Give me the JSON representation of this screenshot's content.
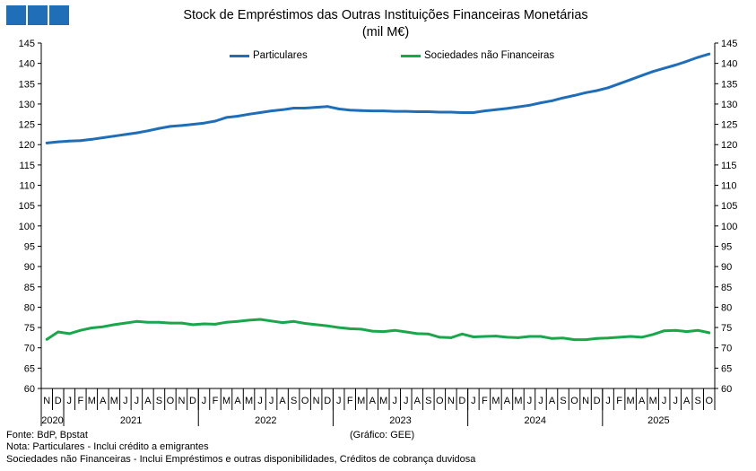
{
  "logo_colors": [
    "#1f6eb7",
    "#1f6eb7",
    "#1f6eb7"
  ],
  "title_line1": "Stock de Empréstimos  das Outras Instituições  Financeiras Monetárias",
  "title_line2": "(mil M€)",
  "source": "Fonte: BdP, Bpstat",
  "note1": "Nota: Particulares - Inclui crédito a emigrantes",
  "note2": "Sociedades não Financeiras - Inclui Empréstimos  e outras disponibilidades,  Créditos de cobrança duvidosa",
  "credit": "(Gráfico: GEE)",
  "chart_data": {
    "type": "line",
    "title": "Stock de Empréstimos  das Outras Instituições  Financeiras Monetárias",
    "subtitle": "(mil M€)",
    "x": [
      "2020-11",
      "2020-12",
      "2021-01",
      "2021-02",
      "2021-03",
      "2021-04",
      "2021-05",
      "2021-06",
      "2021-07",
      "2021-08",
      "2021-09",
      "2021-10",
      "2021-11",
      "2021-12",
      "2022-01",
      "2022-02",
      "2022-03",
      "2022-04",
      "2022-05",
      "2022-06",
      "2022-07",
      "2022-08",
      "2022-09",
      "2022-10",
      "2022-11",
      "2022-12",
      "2023-01",
      "2023-02",
      "2023-03",
      "2023-04",
      "2023-05",
      "2023-06",
      "2023-07",
      "2023-08",
      "2023-09",
      "2023-10",
      "2023-11",
      "2023-12",
      "2024-01",
      "2024-02",
      "2024-03",
      "2024-04",
      "2024-05",
      "2024-06",
      "2024-07",
      "2024-08",
      "2024-09",
      "2024-10",
      "2024-11",
      "2024-12",
      "2025-01",
      "2025-02",
      "2025-03",
      "2025-04",
      "2025-05",
      "2025-06",
      "2025-07",
      "2025-08",
      "2025-09",
      "2025-10"
    ],
    "month_labels": [
      "N",
      "D",
      "J",
      "F",
      "M",
      "A",
      "M",
      "J",
      "J",
      "A",
      "S",
      "O",
      "N",
      "D",
      "J",
      "F",
      "M",
      "A",
      "M",
      "J",
      "J",
      "A",
      "S",
      "O",
      "N",
      "D",
      "J",
      "F",
      "M",
      "A",
      "M",
      "J",
      "J",
      "A",
      "S",
      "O",
      "N",
      "D",
      "J",
      "F",
      "M",
      "A",
      "M",
      "J",
      "J",
      "A",
      "S",
      "O",
      "N",
      "D",
      "J",
      "F",
      "M",
      "A",
      "M",
      "J",
      "J",
      "A",
      "S",
      "O"
    ],
    "years": [
      {
        "label": "2020",
        "start": 0,
        "end": 1
      },
      {
        "label": "2021",
        "start": 2,
        "end": 13
      },
      {
        "label": "2022",
        "start": 14,
        "end": 25
      },
      {
        "label": "2023",
        "start": 26,
        "end": 37
      },
      {
        "label": "2024",
        "start": 38,
        "end": 49
      },
      {
        "label": "2025",
        "start": 50,
        "end": 59
      }
    ],
    "ylim": [
      60,
      145
    ],
    "yticks": [
      60,
      65,
      70,
      75,
      80,
      85,
      90,
      95,
      100,
      105,
      110,
      115,
      120,
      125,
      130,
      135,
      140,
      145
    ],
    "right_axis": true,
    "grid": false,
    "legend": "top",
    "series": [
      {
        "name": "Particulares",
        "color": "#1f6eb7",
        "values": [
          120.4,
          120.7,
          120.9,
          121.0,
          121.3,
          121.7,
          122.1,
          122.5,
          122.9,
          123.4,
          124.0,
          124.5,
          124.7,
          125.0,
          125.3,
          125.8,
          126.7,
          127.0,
          127.5,
          127.9,
          128.3,
          128.6,
          129.0,
          129.0,
          129.2,
          129.4,
          128.8,
          128.5,
          128.4,
          128.3,
          128.3,
          128.2,
          128.2,
          128.1,
          128.1,
          128.0,
          128.0,
          127.9,
          127.9,
          128.3,
          128.6,
          128.9,
          129.3,
          129.7,
          130.3,
          130.8,
          131.5,
          132.1,
          132.8,
          133.3,
          134.0,
          135.0,
          136.0,
          137.0,
          138.0,
          138.8,
          139.6,
          140.5,
          141.5,
          142.3
        ]
      },
      {
        "name": "Sociedades não Financeiras",
        "color": "#1aa64b",
        "values": [
          72.1,
          73.9,
          73.5,
          74.3,
          74.9,
          75.2,
          75.7,
          76.1,
          76.5,
          76.3,
          76.3,
          76.1,
          76.1,
          75.7,
          75.9,
          75.8,
          76.3,
          76.5,
          76.8,
          77.0,
          76.6,
          76.2,
          76.5,
          76.0,
          75.7,
          75.4,
          75.0,
          74.7,
          74.6,
          74.1,
          74.0,
          74.3,
          73.9,
          73.5,
          73.4,
          72.6,
          72.5,
          73.4,
          72.7,
          72.8,
          72.9,
          72.6,
          72.5,
          72.8,
          72.8,
          72.3,
          72.4,
          72.0,
          72.0,
          72.3,
          72.4,
          72.6,
          72.8,
          72.6,
          73.3,
          74.2,
          74.3,
          74.0,
          74.3,
          73.7
        ]
      }
    ]
  }
}
